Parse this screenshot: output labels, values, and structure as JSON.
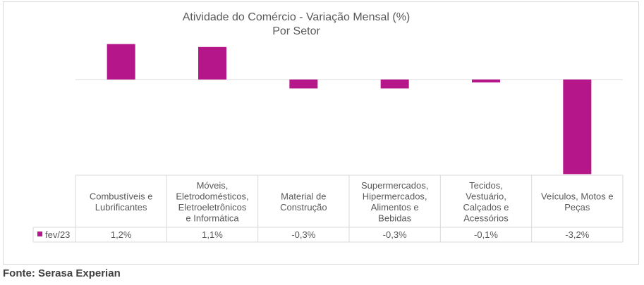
{
  "chart_data": {
    "type": "bar",
    "title": "Atividade do Comércio - Variação Mensal (%)",
    "subtitle": "Por Setor",
    "categories": [
      [
        "Combustíveis e",
        "Lubrificantes"
      ],
      [
        "Móveis,",
        "Eletrodomésticos,",
        "Eletroeletrônicos",
        "e Informática"
      ],
      [
        "Material de",
        "Construção"
      ],
      [
        "Supermercados,",
        "Hipermercados,",
        "Alimentos e",
        "Bebidas"
      ],
      [
        "Tecidos,",
        "Vestuário,",
        "Calçados e",
        "Acessórios"
      ],
      [
        "Veículos, Motos e",
        "Peças"
      ]
    ],
    "series": [
      {
        "name": "fev/23",
        "values": [
          1.2,
          1.1,
          -0.3,
          -0.3,
          -0.1,
          -3.2
        ],
        "labels": [
          "1,2%",
          "1,1%",
          "-0,3%",
          "-0,3%",
          "-0,1%",
          "-3,2%"
        ],
        "color": "#b5168a"
      }
    ],
    "ylim": [
      -3.5,
      1.4
    ],
    "grid": false,
    "legend": "data-table"
  },
  "source": "Fonte: Serasa Experian"
}
